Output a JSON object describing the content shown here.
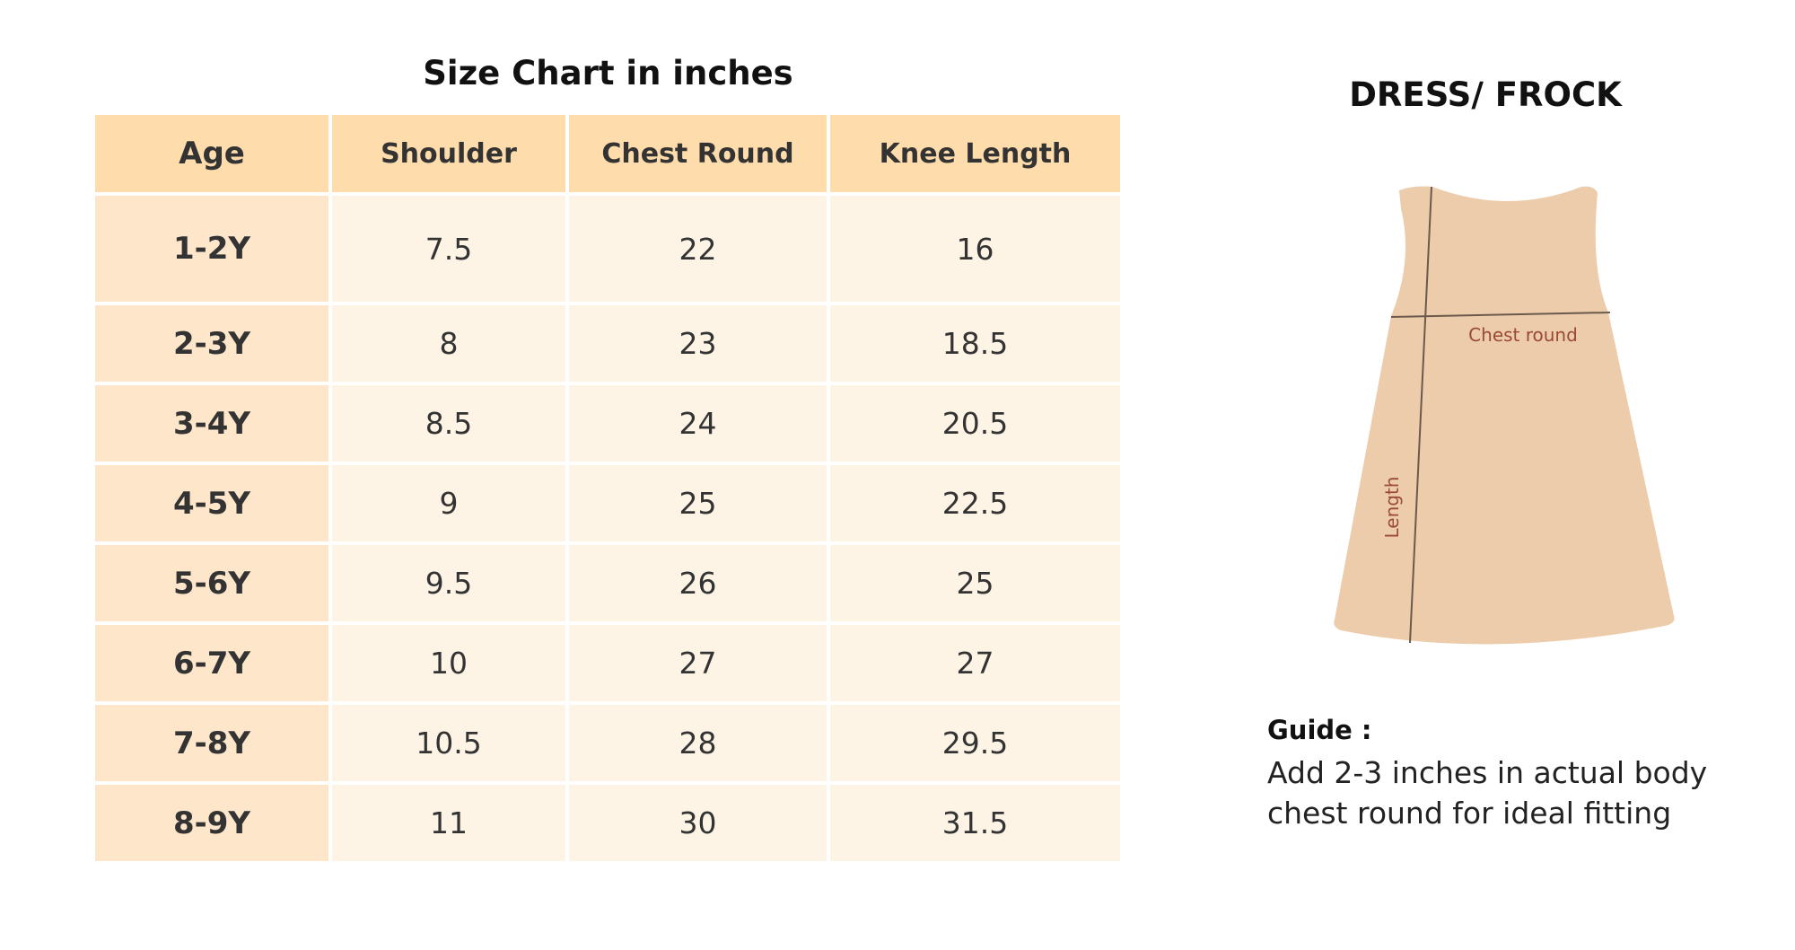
{
  "table": {
    "title": "Size Chart in inches",
    "headers": [
      "Age",
      "Shoulder",
      "Chest Round",
      "Knee Length"
    ],
    "rows": [
      [
        "1-2Y",
        "7.5",
        "22",
        "16"
      ],
      [
        "2-3Y",
        "8",
        "23",
        "18.5"
      ],
      [
        "3-4Y",
        "8.5",
        "24",
        "20.5"
      ],
      [
        "4-5Y",
        "9",
        "25",
        "22.5"
      ],
      [
        "5-6Y",
        "9.5",
        "26",
        "25"
      ],
      [
        "6-7Y",
        "10",
        "27",
        "27"
      ],
      [
        "7-8Y",
        "10.5",
        "28",
        "29.5"
      ],
      [
        "8-9Y",
        "11",
        "30",
        "31.5"
      ]
    ]
  },
  "diagram": {
    "title": "DRESS/ FROCK",
    "chest_label": "Chest round",
    "length_label": "Length"
  },
  "guide": {
    "label": "Guide :",
    "text": "Add 2-3 inches in actual body chest round for ideal fitting"
  }
}
